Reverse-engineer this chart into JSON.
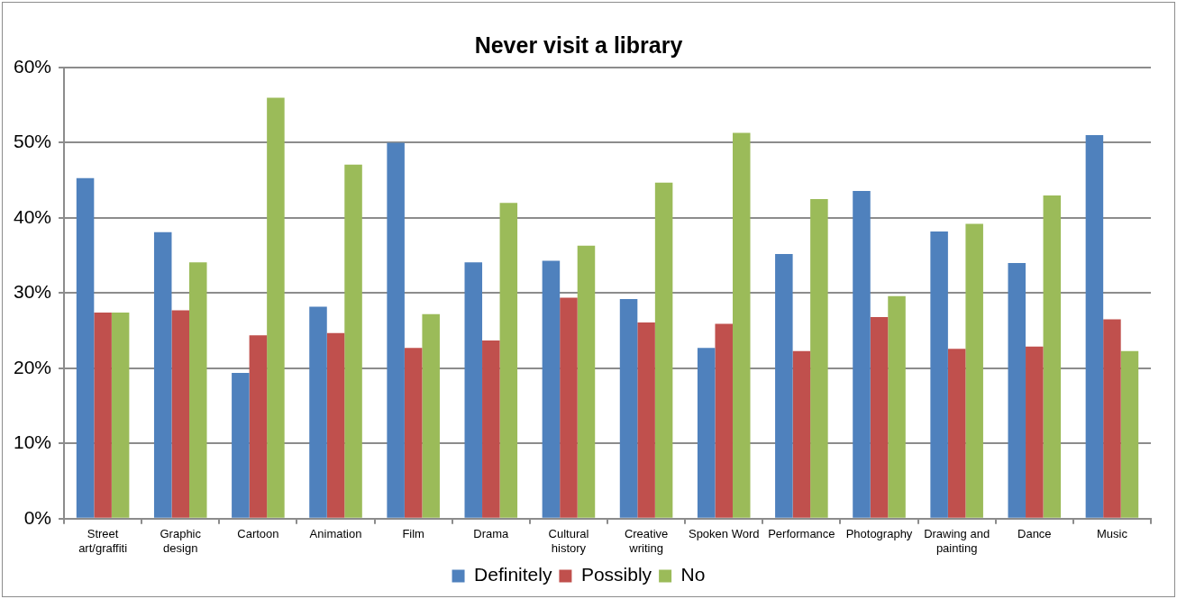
{
  "chart_data": {
    "type": "bar",
    "title": "Never visit a library",
    "categories": [
      "Street art/graffiti",
      "Graphic design",
      "Cartoon",
      "Animation",
      "Film",
      "Drama",
      "Cultural history",
      "Creative writing",
      "Spoken Word",
      "Performance",
      "Photography",
      "Drawing and painting",
      "Dance",
      "Music"
    ],
    "series": [
      {
        "name": "Definitely",
        "color": "#4f81bd",
        "values": [
          45.3,
          38.1,
          19.4,
          28.2,
          50.0,
          34.1,
          34.3,
          29.2,
          22.7,
          35.2,
          43.6,
          38.2,
          34.0,
          51.0
        ]
      },
      {
        "name": "Possibly",
        "color": "#c0504d",
        "values": [
          27.4,
          27.7,
          24.4,
          24.7,
          22.7,
          23.7,
          29.4,
          26.1,
          25.9,
          22.3,
          26.8,
          22.6,
          22.9,
          26.5
        ]
      },
      {
        "name": "No",
        "color": "#9bbb59",
        "values": [
          27.4,
          34.1,
          56.0,
          47.1,
          27.2,
          42.0,
          36.3,
          44.7,
          51.3,
          42.5,
          29.6,
          39.2,
          43.0,
          22.3
        ]
      }
    ],
    "ylim": [
      0,
      60
    ],
    "yticks": [
      {
        "value": 0,
        "label": "0%"
      },
      {
        "value": 10,
        "label": "10%"
      },
      {
        "value": 20,
        "label": "20%"
      },
      {
        "value": 30,
        "label": "30%"
      },
      {
        "value": 40,
        "label": "40%"
      },
      {
        "value": 50,
        "label": "50%"
      },
      {
        "value": 60,
        "label": "60%"
      }
    ],
    "grid": "y",
    "legend": "bottom"
  }
}
